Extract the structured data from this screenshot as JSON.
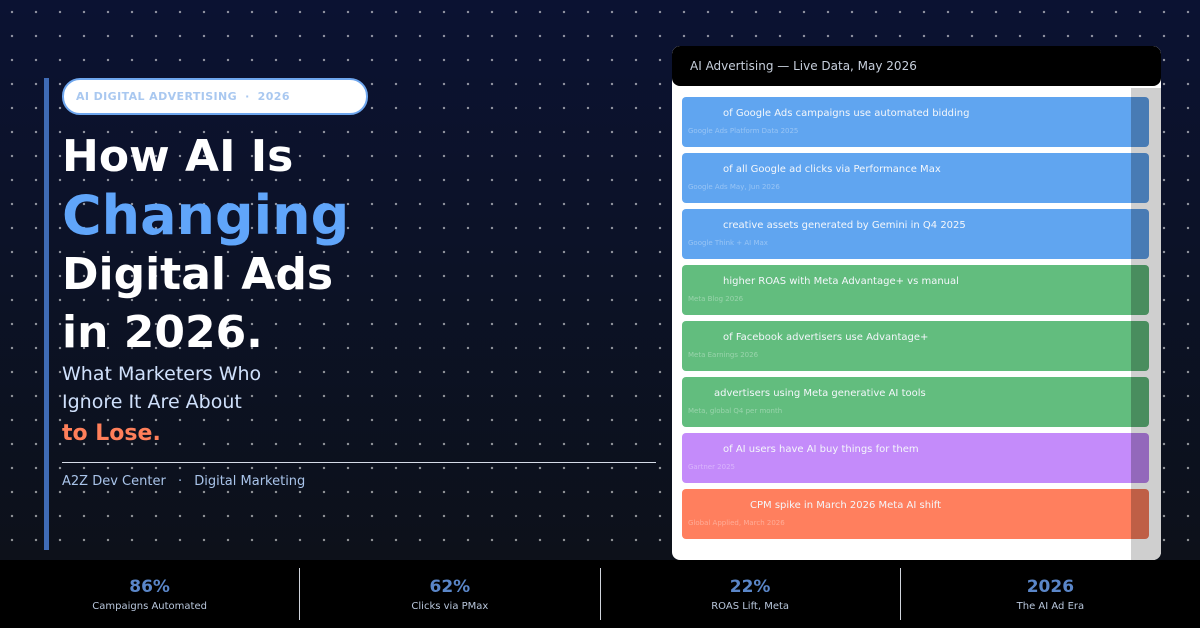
{
  "badge": {
    "left": "AI DIGITAL ADVERTISING",
    "sep": "·",
    "right": "2026"
  },
  "headline": {
    "line1": "How AI Is",
    "line2": "Changing",
    "line3": "Digital Ads",
    "line4": "in 2026."
  },
  "subhead": {
    "line1": "What Marketers Who",
    "line2": "Ignore It Are About",
    "emphasis": "to Lose."
  },
  "byline": {
    "left": "A2Z Dev Center",
    "sep": "·",
    "right": "Digital Marketing"
  },
  "panel": {
    "title": "AI Advertising — Live Data, May 2026",
    "rows": [
      {
        "text": "of Google Ads campaigns use automated bidding",
        "source": "Google Ads Platform Data 2025",
        "color": "blue",
        "indent": 41
      },
      {
        "text": "of all Google ad clicks via Performance Max",
        "source": "Google Ads May, Jun 2026",
        "color": "blue",
        "indent": 41
      },
      {
        "text": "creative assets generated by Gemini in Q4 2025",
        "source": "Google Think + AI Max",
        "color": "blue",
        "indent": 41
      },
      {
        "text": "higher ROAS with Meta Advantage+ vs manual",
        "source": "Meta Blog 2026",
        "color": "green",
        "indent": 41
      },
      {
        "text": "of Facebook advertisers use Advantage+",
        "source": "Meta Earnings 2026",
        "color": "green",
        "indent": 41
      },
      {
        "text": "advertisers using Meta generative AI tools",
        "source": "Meta, global Q4 per month",
        "color": "green",
        "indent": 32
      },
      {
        "text": "of AI users have AI buy things for them",
        "source": "Gartner 2025",
        "color": "purple",
        "indent": 41
      },
      {
        "text": "CPM spike in March 2026 Meta AI shift",
        "source": "Global Applied, March 2026",
        "color": "orange",
        "indent": 68
      }
    ]
  },
  "stats": [
    {
      "value": "86%",
      "label": "Campaigns Automated"
    },
    {
      "value": "62%",
      "label": "Clicks via PMax"
    },
    {
      "value": "22%",
      "label": "ROAS Lift, Meta"
    },
    {
      "value": "2026",
      "label": "The AI Ad Era"
    }
  ]
}
